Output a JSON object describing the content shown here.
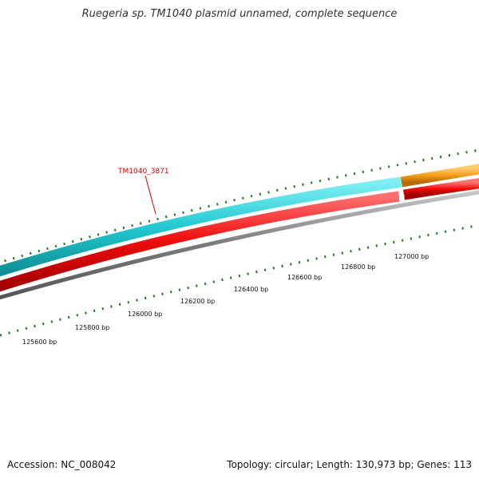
{
  "title": "Ruegeria sp. TM1040 plasmid unnamed, complete sequence",
  "footer": {
    "accession": "Accession: NC_008042",
    "summary": "Topology: circular; Length: 130,973 bp; Genes: 113"
  },
  "gene_label": "TM1040_3871",
  "bp_labels": [
    "125600 bp",
    "125800 bp",
    "126000 bp",
    "126200 bp",
    "126400 bp",
    "126600 bp",
    "126800 bp",
    "127000 bp"
  ],
  "colors": {
    "cyan_track": "#22c8d0",
    "orange_track": "#f5a01a",
    "red_track": "#ee0a0a",
    "gray_backbone": "#7a7a7a",
    "tick_green": "#1f7a1f",
    "gene_label": "#cc0000"
  }
}
